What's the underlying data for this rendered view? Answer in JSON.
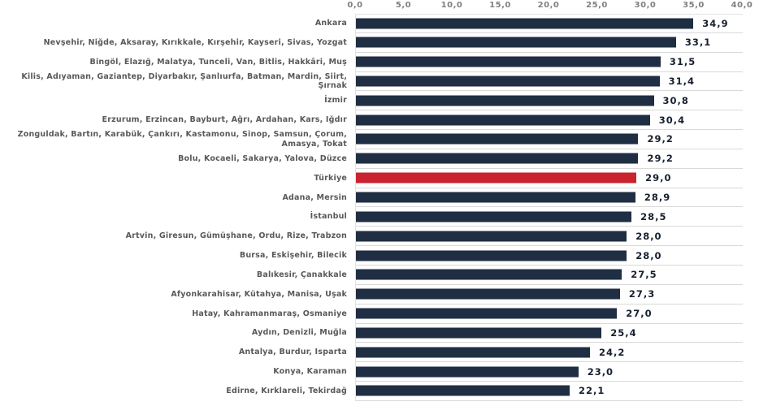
{
  "chart_data": {
    "type": "bar",
    "orientation": "horizontal",
    "title": "",
    "xlabel": "",
    "ylabel": "",
    "xlim": [
      0,
      40
    ],
    "x_tick_step": 5,
    "x_ticks": [
      "0,0",
      "5,0",
      "10,0",
      "15,0",
      "20,0",
      "25,0",
      "30,0",
      "35,0",
      "40,0"
    ],
    "grid": "row-separator-lines",
    "legend": "none",
    "categories": [
      "Ankara",
      "Nevşehir, Niğde, Aksaray, Kırıkkale, Kırşehir, Kayseri, Sivas, Yozgat",
      "Bingöl, Elazığ, Malatya, Tunceli, Van, Bitlis, Hakkâri, Muş",
      "Kilis, Adıyaman, Gaziantep, Diyarbakır, Şanlıurfa, Batman, Mardin, Siirt, Şırnak",
      "İzmir",
      "Erzurum, Erzincan, Bayburt, Ağrı, Ardahan, Kars, Iğdır",
      "Zonguldak, Bartın, Karabük, Çankırı, Kastamonu, Sinop, Samsun, Çorum, Amasya, Tokat",
      "Bolu, Kocaeli, Sakarya, Yalova, Düzce",
      "Türkiye",
      "Adana, Mersin",
      "İstanbul",
      "Artvin, Giresun, Gümüşhane, Ordu, Rize, Trabzon",
      "Bursa, Eskişehir, Bilecik",
      "Balıkesir, Çanakkale",
      "Afyonkarahisar, Kütahya, Manisa, Uşak",
      "Hatay, Kahramanmaraş, Osmaniye",
      "Aydın, Denizli, Muğla",
      "Antalya, Burdur, Isparta",
      "Konya, Karaman",
      "Edirne, Kırklareli, Tekirdağ"
    ],
    "values": [
      34.9,
      33.1,
      31.5,
      31.4,
      30.8,
      30.4,
      29.2,
      29.2,
      29.0,
      28.9,
      28.5,
      28.0,
      28.0,
      27.5,
      27.3,
      27.0,
      25.4,
      24.2,
      23.0,
      22.1
    ],
    "value_labels": [
      "34,9",
      "33,1",
      "31,5",
      "31,4",
      "30,8",
      "30,4",
      "29,2",
      "29,2",
      "29,0",
      "28,9",
      "28,5",
      "28,0",
      "28,0",
      "27,5",
      "27,3",
      "27,0",
      "25,4",
      "24,2",
      "23,0",
      "22,1"
    ],
    "highlight_index": 8,
    "highlight_category": "Türkiye",
    "colors": {
      "bar": "#1f2e42",
      "highlight": "#c8232f",
      "grid": "#d9d9d9",
      "tick_text": "#7f7f7f",
      "category_text": "#595959",
      "value_text": "#16202e"
    }
  }
}
